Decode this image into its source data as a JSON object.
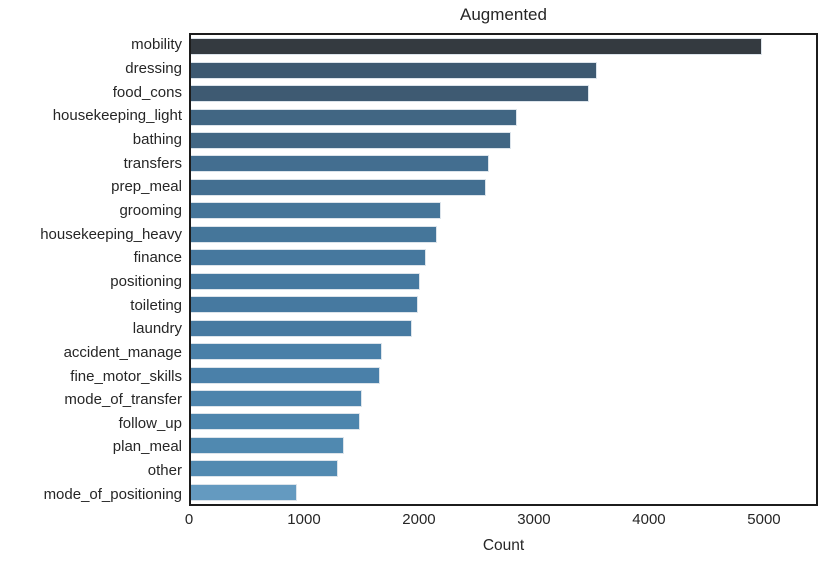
{
  "chart_data": {
    "type": "bar",
    "orientation": "horizontal",
    "title": "Augmented",
    "xlabel": "Count",
    "ylabel": "",
    "xlim": [
      0,
      5470
    ],
    "xticks": [
      0,
      1000,
      2000,
      3000,
      4000,
      5000
    ],
    "grid": false,
    "legend": "none",
    "categories": [
      "mobility",
      "dressing",
      "food_cons",
      "housekeeping_light",
      "bathing",
      "transfers",
      "prep_meal",
      "grooming",
      "housekeeping_heavy",
      "finance",
      "positioning",
      "toileting",
      "laundry",
      "accident_manage",
      "fine_motor_skills",
      "mode_of_transfer",
      "follow_up",
      "plan_meal",
      "other",
      "mode_of_positioning"
    ],
    "values": [
      5000,
      3550,
      3480,
      2850,
      2800,
      2610,
      2580,
      2190,
      2150,
      2060,
      2000,
      1990,
      1930,
      1675,
      1650,
      1500,
      1475,
      1340,
      1290,
      930
    ],
    "bar_colors": [
      "#343a40",
      "#3d5971",
      "#3e5a72",
      "#416683",
      "#426784",
      "#436e90",
      "#436f91",
      "#457599",
      "#45769a",
      "#46789e",
      "#4679a0",
      "#4679a0",
      "#477aa1",
      "#4a80a8",
      "#4a80a9",
      "#4d84ac",
      "#4d85ad",
      "#5089b0",
      "#528ab1",
      "#649ac0"
    ],
    "bar_edge_color": "#dce4eb",
    "plot_border_color": "#1c1c1c",
    "text_color": "#262626",
    "background_color": "#ffffff"
  }
}
